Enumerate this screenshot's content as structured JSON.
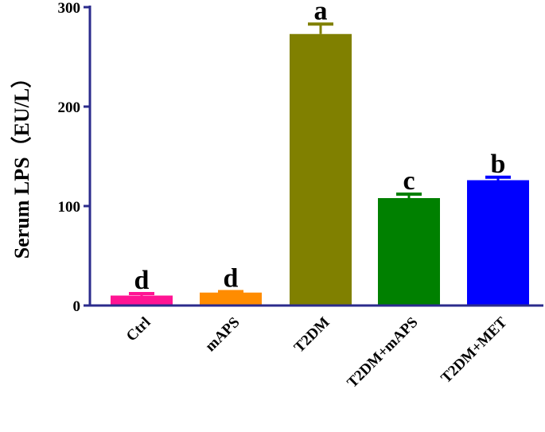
{
  "chart_data": {
    "type": "bar",
    "title": "",
    "xlabel": "",
    "ylabel": "Serum LPS（EU/L）",
    "ylim": [
      0,
      300
    ],
    "yticks": [
      0,
      100,
      200,
      300
    ],
    "grid": false,
    "categories": [
      "Ctrl",
      "mAPS",
      "T2DM",
      "T2DM+mAPS",
      "T2DM+MET"
    ],
    "values": [
      10,
      13,
      273,
      108,
      126
    ],
    "errors": [
      2,
      1,
      10,
      4,
      3
    ],
    "significance": [
      "d",
      "d",
      "a",
      "c",
      "b"
    ],
    "colors": [
      "#ff1493",
      "#ff8c00",
      "#808000",
      "#008000",
      "#0000ff"
    ],
    "axis_color": "#2b2b8c"
  }
}
